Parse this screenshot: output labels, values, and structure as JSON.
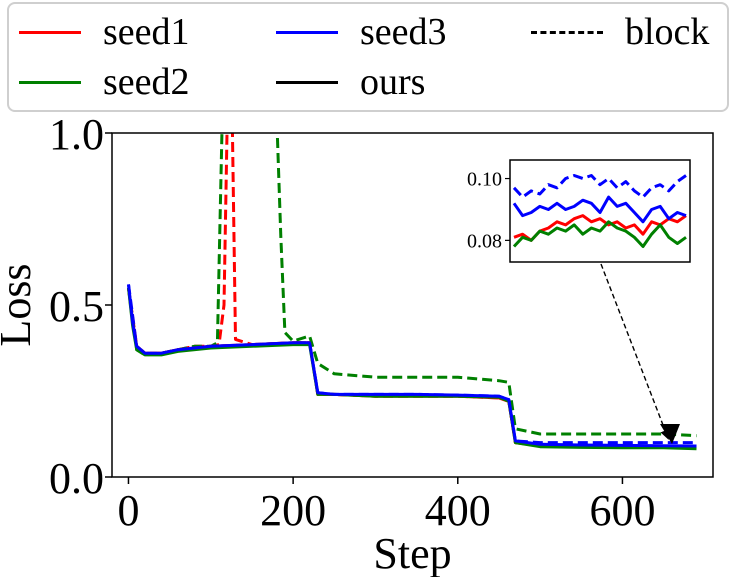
{
  "legend": {
    "items": [
      {
        "label": "seed1",
        "color": "#ff0000",
        "style": "solid"
      },
      {
        "label": "seed3",
        "color": "#0000ff",
        "style": "solid"
      },
      {
        "label": "block",
        "color": "#000000",
        "style": "dashed"
      },
      {
        "label": "seed2",
        "color": "#008000",
        "style": "solid"
      },
      {
        "label": "ours",
        "color": "#000000",
        "style": "solid"
      }
    ]
  },
  "chart_data": {
    "type": "line",
    "xlabel": "Step",
    "ylabel": "Loss",
    "xlim": [
      -20,
      710
    ],
    "ylim": [
      0.0,
      1.0
    ],
    "xticks": [
      0,
      200,
      400,
      600
    ],
    "yticks": [
      0.0,
      0.5,
      1.0
    ],
    "xtick_labels": [
      "0",
      "200",
      "400",
      "600"
    ],
    "ytick_labels": [
      "0.0",
      "0.5",
      "1.0"
    ],
    "grid": false,
    "legend_position": "top, outside plot",
    "series": [
      {
        "name": "seed1",
        "color": "#ff0000",
        "style": "solid",
        "x": [
          0,
          5,
          10,
          20,
          40,
          60,
          100,
          150,
          200,
          220,
          230,
          250,
          300,
          350,
          400,
          450,
          462,
          470,
          500,
          550,
          600,
          650,
          690
        ],
        "y": [
          0.55,
          0.45,
          0.38,
          0.36,
          0.36,
          0.37,
          0.38,
          0.385,
          0.39,
          0.39,
          0.24,
          0.24,
          0.235,
          0.235,
          0.235,
          0.23,
          0.22,
          0.1,
          0.09,
          0.088,
          0.088,
          0.088,
          0.086
        ]
      },
      {
        "name": "seed2",
        "color": "#008000",
        "style": "solid",
        "x": [
          0,
          5,
          10,
          20,
          40,
          60,
          100,
          150,
          200,
          220,
          230,
          250,
          300,
          350,
          400,
          450,
          462,
          470,
          500,
          550,
          600,
          650,
          690
        ],
        "y": [
          0.55,
          0.44,
          0.37,
          0.355,
          0.355,
          0.365,
          0.375,
          0.38,
          0.385,
          0.385,
          0.24,
          0.24,
          0.235,
          0.235,
          0.235,
          0.232,
          0.22,
          0.1,
          0.088,
          0.086,
          0.085,
          0.085,
          0.082
        ]
      },
      {
        "name": "seed3",
        "color": "#0000ff",
        "style": "solid",
        "x": [
          0,
          5,
          10,
          20,
          40,
          60,
          100,
          150,
          200,
          220,
          230,
          250,
          300,
          350,
          400,
          450,
          462,
          470,
          500,
          550,
          600,
          650,
          690
        ],
        "y": [
          0.56,
          0.45,
          0.38,
          0.36,
          0.36,
          0.37,
          0.38,
          0.385,
          0.39,
          0.39,
          0.245,
          0.24,
          0.24,
          0.24,
          0.238,
          0.235,
          0.225,
          0.105,
          0.095,
          0.093,
          0.092,
          0.091,
          0.09
        ]
      },
      {
        "name": "seed1 block",
        "color": "#ff0000",
        "style": "dashed",
        "x": [
          0,
          10,
          20,
          40,
          60,
          80,
          100,
          110,
          116,
          120,
          126,
          130,
          150,
          200,
          220,
          230,
          250,
          300,
          350,
          400,
          450,
          462,
          470,
          500,
          550,
          600,
          650,
          690
        ],
        "y": [
          0.55,
          0.38,
          0.36,
          0.36,
          0.37,
          0.38,
          0.38,
          0.385,
          0.5,
          1.05,
          1.05,
          0.4,
          0.385,
          0.39,
          0.39,
          0.24,
          0.24,
          0.235,
          0.235,
          0.235,
          0.23,
          0.22,
          0.1,
          0.09,
          0.09,
          0.09,
          0.09,
          0.09
        ]
      },
      {
        "name": "seed2 block",
        "color": "#008000",
        "style": "dashed",
        "x": [
          0,
          10,
          20,
          40,
          60,
          80,
          100,
          108,
          114,
          120,
          150,
          180,
          185,
          190,
          200,
          220,
          230,
          250,
          300,
          350,
          400,
          450,
          462,
          470,
          500,
          550,
          600,
          650,
          690
        ],
        "y": [
          0.55,
          0.37,
          0.355,
          0.36,
          0.37,
          0.38,
          0.38,
          0.39,
          1.05,
          1.05,
          1.05,
          1.05,
          0.7,
          0.42,
          0.395,
          0.41,
          0.33,
          0.3,
          0.29,
          0.29,
          0.29,
          0.28,
          0.275,
          0.14,
          0.125,
          0.125,
          0.125,
          0.125,
          0.12
        ]
      },
      {
        "name": "seed3 block",
        "color": "#0000ff",
        "style": "dashed",
        "x": [
          0,
          10,
          20,
          40,
          60,
          100,
          150,
          200,
          220,
          230,
          250,
          300,
          350,
          400,
          450,
          462,
          470,
          500,
          550,
          600,
          650,
          690
        ],
        "y": [
          0.56,
          0.38,
          0.36,
          0.36,
          0.37,
          0.38,
          0.385,
          0.39,
          0.39,
          0.245,
          0.24,
          0.24,
          0.24,
          0.238,
          0.235,
          0.225,
          0.105,
          0.1,
          0.1,
          0.1,
          0.1,
          0.1
        ]
      }
    ],
    "inset": {
      "yticks": [
        0.08,
        0.1
      ],
      "ytick_labels": [
        "0.08",
        "0.10"
      ],
      "ylim": [
        0.073,
        0.106
      ],
      "x": [
        0,
        1,
        2,
        3,
        4,
        5,
        6,
        7,
        8,
        9,
        10,
        11,
        12,
        13,
        14,
        15,
        16,
        17,
        18,
        19,
        20
      ],
      "series": [
        {
          "name": "seed1",
          "color": "#ff0000",
          "style": "solid",
          "y": [
            0.081,
            0.082,
            0.08,
            0.083,
            0.084,
            0.086,
            0.085,
            0.087,
            0.088,
            0.086,
            0.087,
            0.085,
            0.086,
            0.084,
            0.085,
            0.082,
            0.086,
            0.085,
            0.087,
            0.086,
            0.088
          ]
        },
        {
          "name": "seed2",
          "color": "#008000",
          "style": "solid",
          "y": [
            0.078,
            0.081,
            0.08,
            0.083,
            0.082,
            0.084,
            0.083,
            0.085,
            0.082,
            0.084,
            0.083,
            0.086,
            0.084,
            0.083,
            0.081,
            0.078,
            0.082,
            0.085,
            0.081,
            0.079,
            0.081
          ]
        },
        {
          "name": "seed3",
          "color": "#0000ff",
          "style": "solid",
          "y": [
            0.092,
            0.088,
            0.089,
            0.091,
            0.09,
            0.092,
            0.09,
            0.091,
            0.093,
            0.092,
            0.089,
            0.094,
            0.091,
            0.092,
            0.089,
            0.086,
            0.09,
            0.091,
            0.087,
            0.089,
            0.088
          ]
        },
        {
          "name": "seed3 block",
          "color": "#0000ff",
          "style": "dashed",
          "y": [
            0.097,
            0.094,
            0.096,
            0.095,
            0.098,
            0.097,
            0.1,
            0.101,
            0.1,
            0.101,
            0.098,
            0.1,
            0.097,
            0.099,
            0.096,
            0.094,
            0.097,
            0.098,
            0.096,
            0.099,
            0.101
          ]
        }
      ]
    }
  }
}
